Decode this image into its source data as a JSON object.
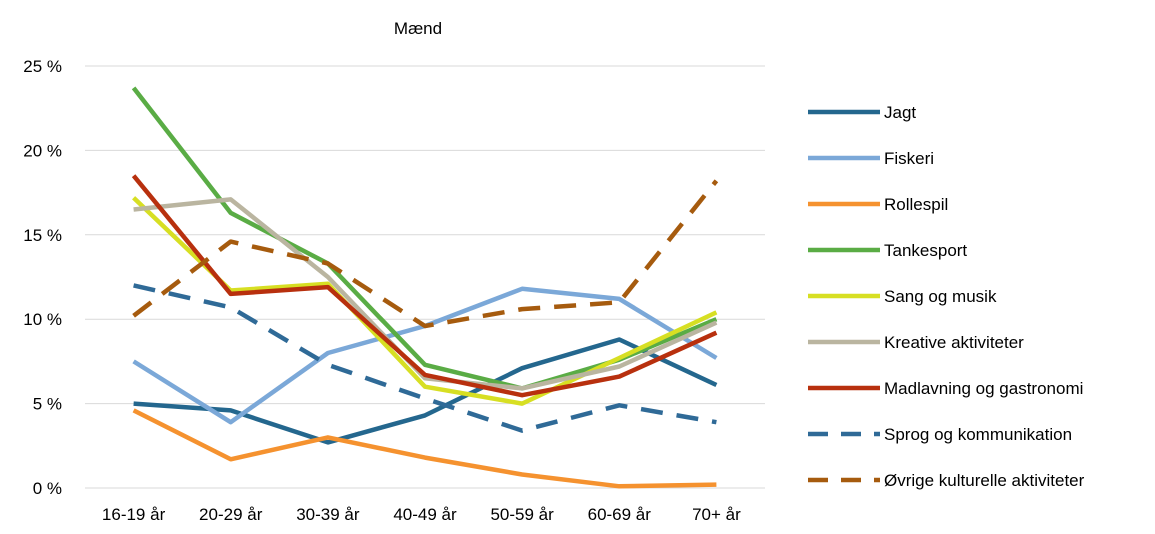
{
  "chart_data": {
    "type": "line",
    "title": "Mænd",
    "xlabel": "",
    "ylabel": "",
    "categories": [
      "16-19 år",
      "20-29 år",
      "30-39 år",
      "40-49 år",
      "50-59 år",
      "60-69 år",
      "70+ år"
    ],
    "ylim": [
      0,
      25
    ],
    "yticks": [
      0,
      5,
      10,
      15,
      20,
      25
    ],
    "ytick_labels": [
      "0 %",
      "5 %",
      "10 %",
      "15 %",
      "20 %",
      "25 %"
    ],
    "grid": true,
    "legend_position": "right",
    "series": [
      {
        "name": "Jagt",
        "color": "#24678e",
        "dash": "solid",
        "values": [
          5.0,
          4.6,
          2.7,
          4.3,
          7.1,
          8.8,
          6.1
        ]
      },
      {
        "name": "Fiskeri",
        "color": "#7ba8d8",
        "dash": "solid",
        "values": [
          7.5,
          3.9,
          8.0,
          9.6,
          11.8,
          11.2,
          7.7
        ]
      },
      {
        "name": "Rollespil",
        "color": "#f5922f",
        "dash": "solid",
        "values": [
          4.6,
          1.7,
          3.0,
          1.8,
          0.8,
          0.1,
          0.2
        ]
      },
      {
        "name": "Tankesport",
        "color": "#5aac45",
        "dash": "solid",
        "values": [
          23.7,
          16.3,
          13.3,
          7.3,
          5.9,
          7.6,
          10.0
        ]
      },
      {
        "name": "Sang og musik",
        "color": "#d7df23",
        "dash": "solid",
        "values": [
          17.2,
          11.7,
          12.1,
          6.0,
          5.0,
          7.7,
          10.4
        ]
      },
      {
        "name": "Kreative aktiviteter",
        "color": "#bab5a0",
        "dash": "solid",
        "values": [
          16.5,
          17.1,
          12.5,
          6.5,
          5.9,
          7.2,
          9.8
        ]
      },
      {
        "name": "Madlavning og gastronomi",
        "color": "#b8300e",
        "dash": "solid",
        "values": [
          18.5,
          11.5,
          11.9,
          6.7,
          5.5,
          6.6,
          9.2
        ]
      },
      {
        "name": "Sprog og kommunikation",
        "color": "#2f6a97",
        "dash": "dashed",
        "values": [
          12.0,
          10.7,
          7.3,
          5.3,
          3.4,
          4.9,
          3.9
        ]
      },
      {
        "name": "Øvrige kulturelle aktiviteter",
        "color": "#a65b0e",
        "dash": "dashed",
        "values": [
          10.2,
          14.6,
          13.3,
          9.6,
          10.6,
          11.0,
          18.2
        ]
      }
    ]
  }
}
